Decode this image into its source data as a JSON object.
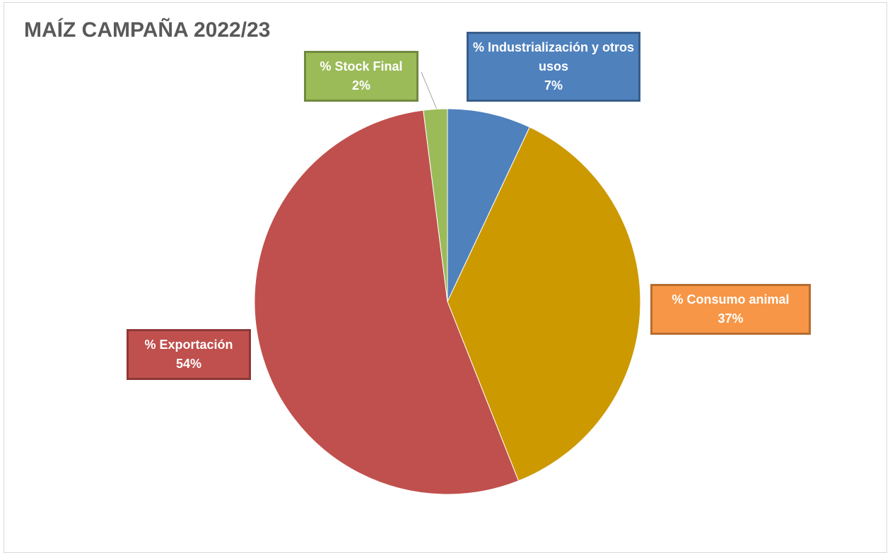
{
  "chart_data": {
    "type": "pie",
    "title": "MAÍZ CAMPAÑA 2022/23",
    "categories": [
      "% Industrialización y otros usos",
      "% Consumo animal",
      "% Exportación",
      "% Stock Final"
    ],
    "values": [
      7,
      37,
      54,
      2
    ],
    "value_labels": [
      "7%",
      "37%",
      "54%",
      "2%"
    ],
    "colors": [
      "#4f81bd",
      "#cc9900",
      "#c0504d",
      "#9bbb59"
    ],
    "label_colors": [
      "#4f81bd",
      "#f79646",
      "#c0504d",
      "#9bbb59"
    ]
  }
}
